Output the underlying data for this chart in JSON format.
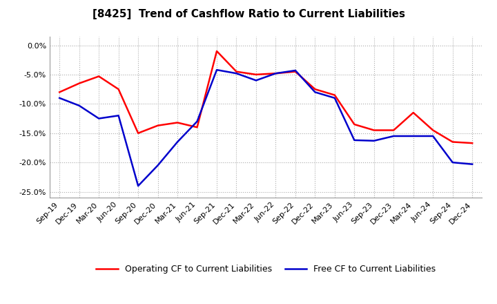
{
  "title": "[8425]  Trend of Cashflow Ratio to Current Liabilities",
  "x_labels": [
    "Sep-19",
    "Dec-19",
    "Mar-20",
    "Jun-20",
    "Sep-20",
    "Dec-20",
    "Mar-21",
    "Jun-21",
    "Sep-21",
    "Dec-21",
    "Mar-22",
    "Jun-22",
    "Sep-22",
    "Dec-22",
    "Mar-23",
    "Jun-23",
    "Sep-23",
    "Dec-23",
    "Mar-24",
    "Jun-24",
    "Sep-24",
    "Dec-24"
  ],
  "operating_cf": [
    -8.0,
    -6.5,
    -5.3,
    -7.5,
    -15.0,
    -13.7,
    -13.2,
    -14.0,
    -1.0,
    -4.5,
    -5.0,
    -4.8,
    -4.5,
    -7.5,
    -8.5,
    -13.5,
    -14.5,
    -14.5,
    -11.5,
    -14.5,
    -16.5,
    -16.7
  ],
  "free_cf": [
    -9.0,
    -10.3,
    -12.5,
    -12.0,
    -24.0,
    -20.5,
    -16.5,
    -13.0,
    -4.2,
    -4.8,
    -6.0,
    -4.8,
    -4.3,
    -8.0,
    -9.0,
    -16.2,
    -16.3,
    -15.5,
    -15.5,
    -15.5,
    -20.0,
    -20.3
  ],
  "ylim": [
    -26.0,
    1.5
  ],
  "yticks": [
    0.0,
    -5.0,
    -10.0,
    -15.0,
    -20.0,
    -25.0
  ],
  "operating_color": "#FF0000",
  "free_color": "#0000CC",
  "background_color": "#FFFFFF",
  "plot_bg_color": "#FFFFFF",
  "grid_color": "#AAAAAA",
  "legend_operating": "Operating CF to Current Liabilities",
  "legend_free": "Free CF to Current Liabilities",
  "title_fontsize": 11,
  "axis_fontsize": 8,
  "legend_fontsize": 9,
  "line_width": 1.8
}
